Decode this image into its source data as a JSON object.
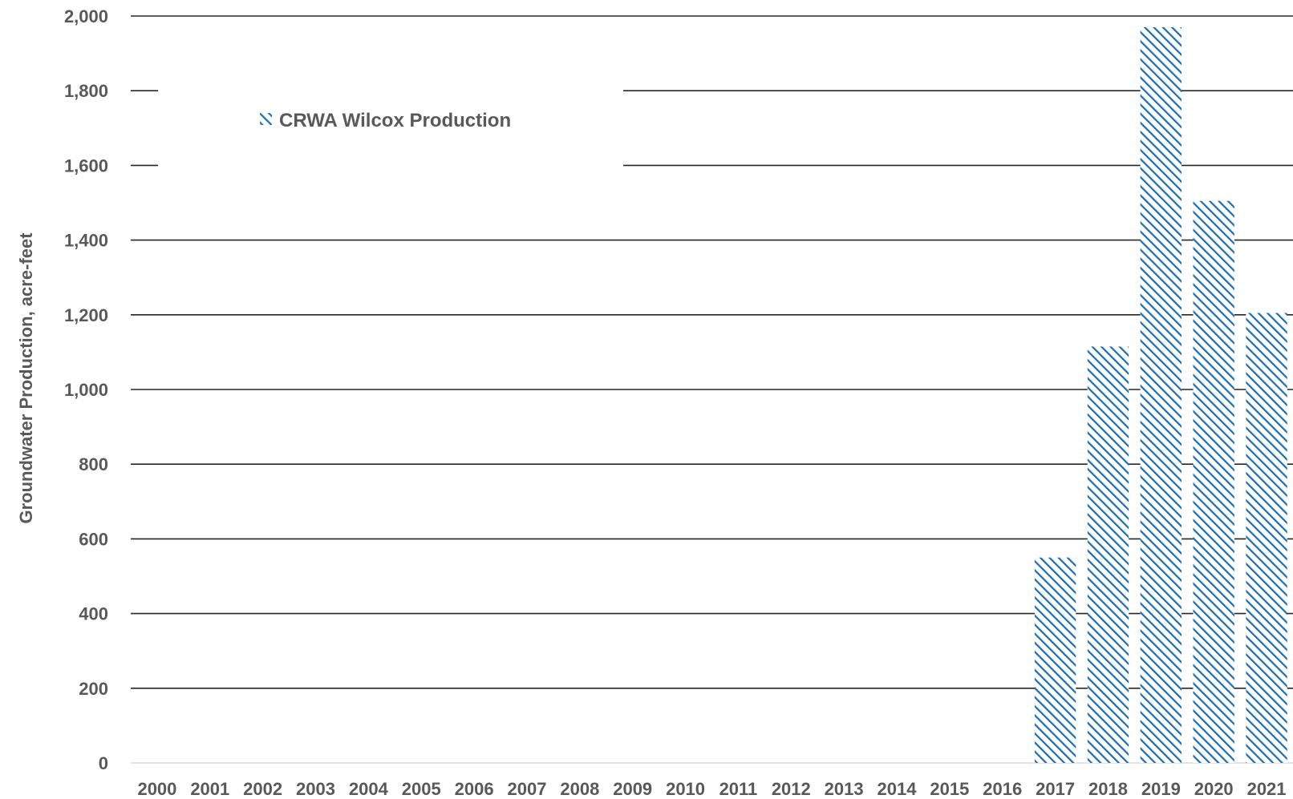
{
  "chart_data": {
    "type": "bar",
    "title": "",
    "xlabel": "",
    "ylabel": "Groundwater Production, acre-feet",
    "ylim": [
      0,
      2000
    ],
    "yticks": [
      0,
      200,
      400,
      600,
      800,
      1000,
      1200,
      1400,
      1600,
      1800,
      2000
    ],
    "ytick_labels": [
      "0",
      "200",
      "400",
      "600",
      "800",
      "1,000",
      "1,200",
      "1,400",
      "1,600",
      "1,800",
      "2,000"
    ],
    "categories": [
      "2000",
      "2001",
      "2002",
      "2003",
      "2004",
      "2005",
      "2006",
      "2007",
      "2008",
      "2009",
      "2010",
      "2011",
      "2012",
      "2013",
      "2014",
      "2015",
      "2016",
      "2017",
      "2018",
      "2019",
      "2020",
      "2021"
    ],
    "series": [
      {
        "name": "CRWA Wilcox Production",
        "values": [
          0,
          0,
          0,
          0,
          0,
          0,
          0,
          0,
          0,
          0,
          0,
          0,
          0,
          0,
          0,
          0,
          0,
          550,
          1115,
          1970,
          1505,
          1205
        ],
        "color": "#1f6fb2",
        "pattern": "diagonal-hatch"
      }
    ],
    "grid": true,
    "legend_position": "top-left"
  }
}
